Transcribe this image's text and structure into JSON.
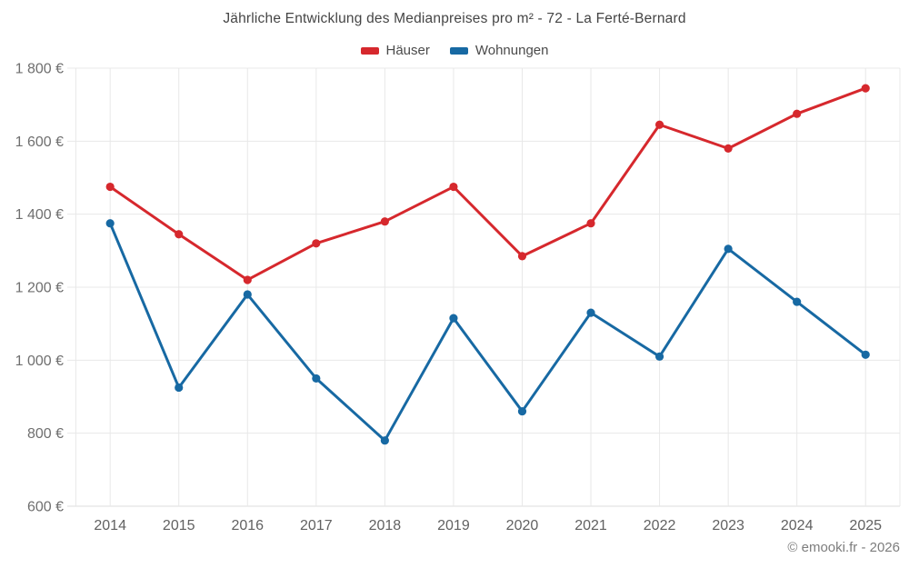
{
  "title": "Jährliche Entwicklung des Medianpreises pro m² - 72 - La Ferté-Bernard",
  "footer": "© emooki.fr - 2026",
  "colors": {
    "hauser": "#d6282d",
    "wohnungen": "#1769a3",
    "grid": "#e8e8e8",
    "axis_line": "#dcdcdc",
    "y_tick_text": "#6f6f6f",
    "x_tick_text": "#616161"
  },
  "chart_data": {
    "type": "line",
    "x": [
      "2014",
      "2015",
      "2016",
      "2017",
      "2018",
      "2019",
      "2020",
      "2021",
      "2022",
      "2023",
      "2024",
      "2025"
    ],
    "series": [
      {
        "name": "Häuser",
        "color": "#d6282d",
        "values": [
          1475,
          1345,
          1220,
          1320,
          1380,
          1475,
          1285,
          1375,
          1645,
          1580,
          1675,
          1745
        ]
      },
      {
        "name": "Wohnungen",
        "color": "#1769a3",
        "values": [
          1375,
          925,
          1180,
          950,
          780,
          1115,
          860,
          1130,
          1010,
          1305,
          1160,
          1015
        ]
      }
    ],
    "ylabel": "",
    "xlabel": "",
    "ylim": [
      600,
      1800
    ],
    "ytick_step": 200,
    "ytick_labels": [
      "600 €",
      "800 €",
      "1 000 €",
      "1 200 €",
      "1 400 €",
      "1 600 €",
      "1 800 €"
    ],
    "grid": true,
    "legend_position": "top",
    "marker_radius": 4.6,
    "line_width": 3
  }
}
